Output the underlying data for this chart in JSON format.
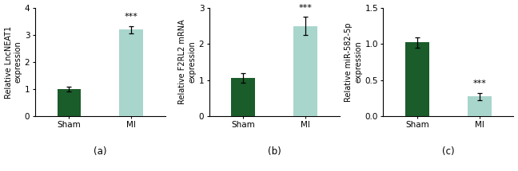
{
  "charts": [
    {
      "categories": [
        "Sham",
        "MI"
      ],
      "values": [
        1.0,
        3.2
      ],
      "errors": [
        0.08,
        0.13
      ],
      "colors": [
        "#1a5c2a",
        "#a8d5cc"
      ],
      "ylabel": "Relative LncNEAT1\nexpression",
      "ylim": [
        0,
        4
      ],
      "yticks": [
        0,
        1,
        2,
        3,
        4
      ],
      "ytick_labels": [
        "0",
        "1",
        "2",
        "3",
        "4"
      ],
      "sig_bar": 1,
      "sig_text": "***",
      "label": "(a)"
    },
    {
      "categories": [
        "Sham",
        "MI"
      ],
      "values": [
        1.05,
        2.5
      ],
      "errors": [
        0.13,
        0.25
      ],
      "colors": [
        "#1a5c2a",
        "#a8d5cc"
      ],
      "ylabel": "Relative F2RL2 mRNA\nexpression",
      "ylim": [
        0,
        3
      ],
      "yticks": [
        0,
        1,
        2,
        3
      ],
      "ytick_labels": [
        "0",
        "1",
        "2",
        "3"
      ],
      "sig_bar": 1,
      "sig_text": "***",
      "label": "(b)"
    },
    {
      "categories": [
        "Sham",
        "MI"
      ],
      "values": [
        1.02,
        0.27
      ],
      "errors": [
        0.07,
        0.05
      ],
      "colors": [
        "#1a5c2a",
        "#a8d5cc"
      ],
      "ylabel": "Relative miR-582-5p\nexpression",
      "ylim": [
        0,
        1.5
      ],
      "yticks": [
        0.0,
        0.5,
        1.0,
        1.5
      ],
      "ytick_labels": [
        "0.0",
        "0.5",
        "1.0",
        "1.5"
      ],
      "sig_bar": 1,
      "sig_text": "***",
      "label": "(c)"
    }
  ],
  "bar_width": 0.38,
  "fontsize_ylabel": 7.0,
  "fontsize_tick": 7.5,
  "fontsize_label": 8.5,
  "fontsize_sig": 8.0,
  "background_color": "#ffffff"
}
